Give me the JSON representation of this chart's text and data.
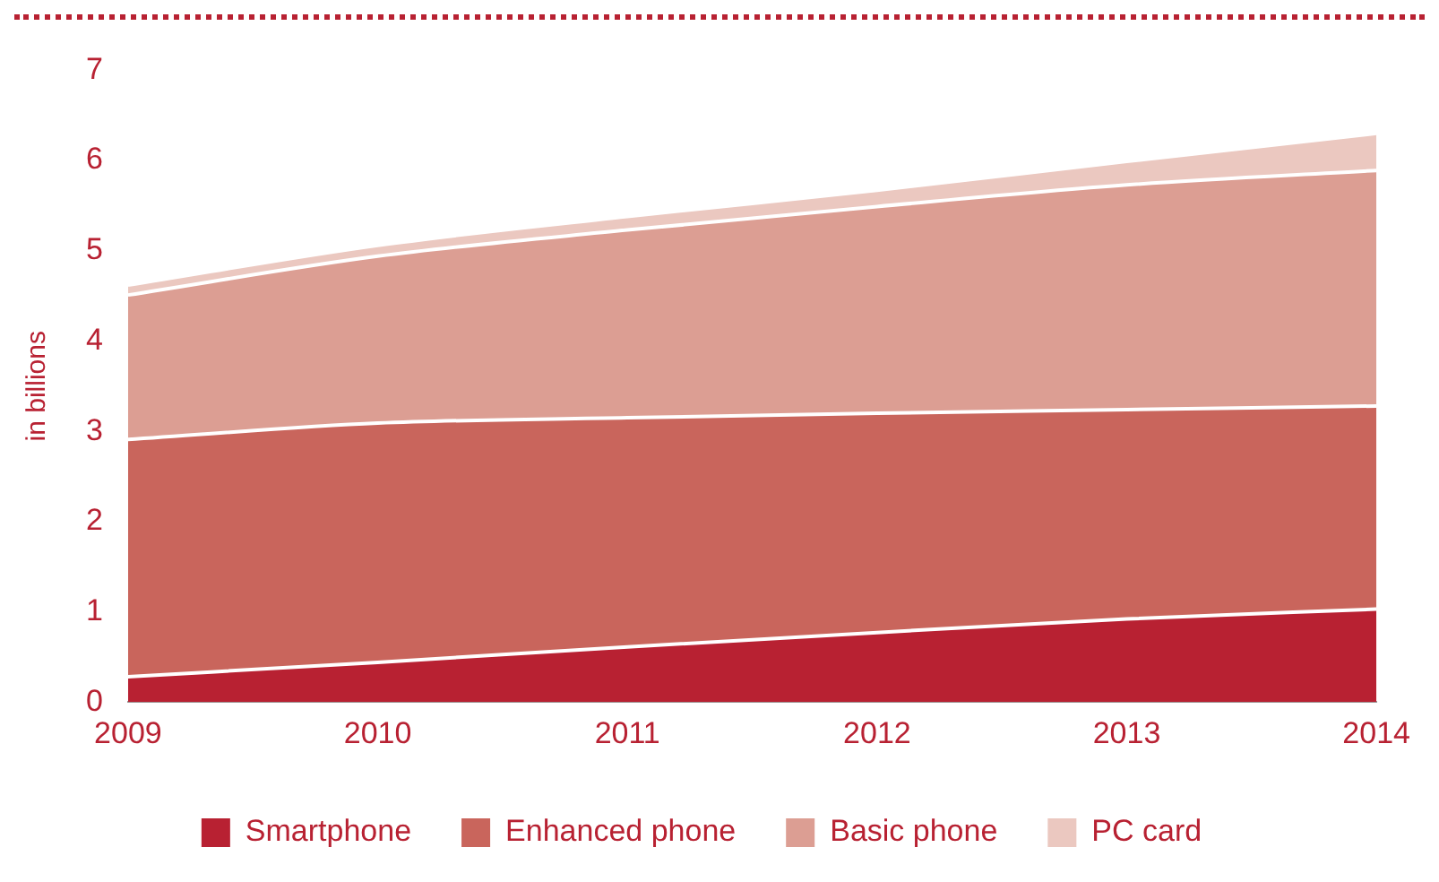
{
  "chart_data": {
    "type": "area",
    "ylabel": "in billions",
    "stacked": true,
    "categories": [
      "2009",
      "2010",
      "2011",
      "2012",
      "2013",
      "2014"
    ],
    "series": [
      {
        "name": "Smartphone",
        "color": "#b82132",
        "values": [
          0.28,
          0.44,
          0.61,
          0.77,
          0.92,
          1.03
        ]
      },
      {
        "name": "Enhanced phone",
        "color": "#c9655c",
        "values": [
          2.63,
          2.65,
          2.54,
          2.43,
          2.32,
          2.25
        ]
      },
      {
        "name": "Basic phone",
        "color": "#dc9e93",
        "values": [
          1.6,
          1.85,
          2.08,
          2.29,
          2.49,
          2.61
        ]
      },
      {
        "name": "PC card",
        "color": "#ebc8c0",
        "values": [
          0.11,
          0.12,
          0.15,
          0.18,
          0.26,
          0.41
        ]
      }
    ],
    "ylim": [
      0,
      7
    ],
    "yticks": [
      0,
      1,
      2,
      3,
      4,
      5,
      6,
      7
    ],
    "grid": false,
    "legend": "bottom"
  }
}
